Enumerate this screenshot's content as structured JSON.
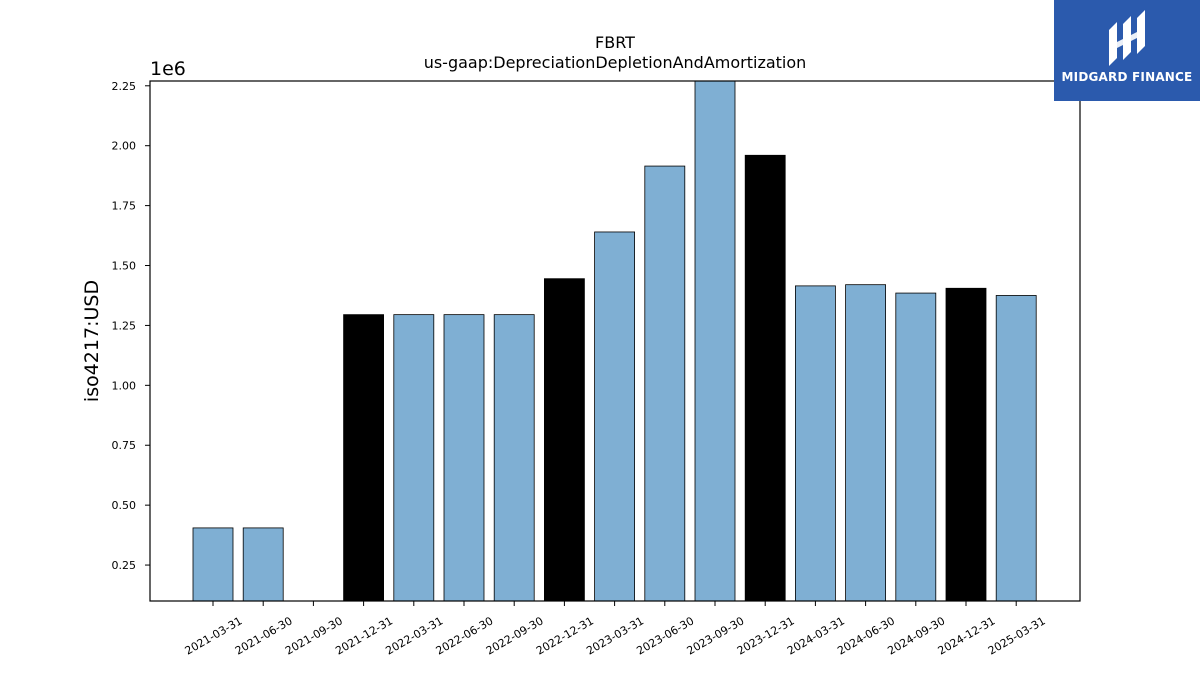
{
  "brand": {
    "name": "MIDGARD FINANCE",
    "logo_icon": "midgard-logo-icon",
    "background_color": "#2b5aad"
  },
  "chart_data": {
    "type": "bar",
    "title": "FBRT",
    "subtitle": "us-gaap:DepreciationDepletionAndAmortization",
    "ylabel": "iso4217:USD",
    "xlabel": "",
    "y_scale_label": "1e6",
    "ylim": [
      0.1,
      2.27
    ],
    "y_ticks": [
      0.25,
      0.5,
      0.75,
      1.0,
      1.25,
      1.5,
      1.75,
      2.0,
      2.25
    ],
    "y_tick_labels": [
      "0.25",
      "0.50",
      "0.75",
      "1.00",
      "1.25",
      "1.50",
      "1.75",
      "2.00",
      "2.25"
    ],
    "grid": false,
    "categories": [
      "2021-03-31",
      "2021-06-30",
      "2021-09-30",
      "2021-12-31",
      "2022-03-31",
      "2022-06-30",
      "2022-09-30",
      "2022-12-31",
      "2023-03-31",
      "2023-06-30",
      "2023-09-30",
      "2023-12-31",
      "2024-03-31",
      "2024-06-30",
      "2024-09-30",
      "2024-12-31",
      "2025-03-31"
    ],
    "values": [
      0.405,
      0.405,
      null,
      1.295,
      1.295,
      1.295,
      1.295,
      1.445,
      1.64,
      1.915,
      2.27,
      1.96,
      1.415,
      1.42,
      1.385,
      1.405,
      1.375
    ],
    "bar_colors": [
      "#7fafd3",
      "#7fafd3",
      "#7fafd3",
      "#000000",
      "#7fafd3",
      "#7fafd3",
      "#7fafd3",
      "#000000",
      "#7fafd3",
      "#7fafd3",
      "#7fafd3",
      "#000000",
      "#7fafd3",
      "#7fafd3",
      "#7fafd3",
      "#000000",
      "#7fafd3"
    ]
  }
}
